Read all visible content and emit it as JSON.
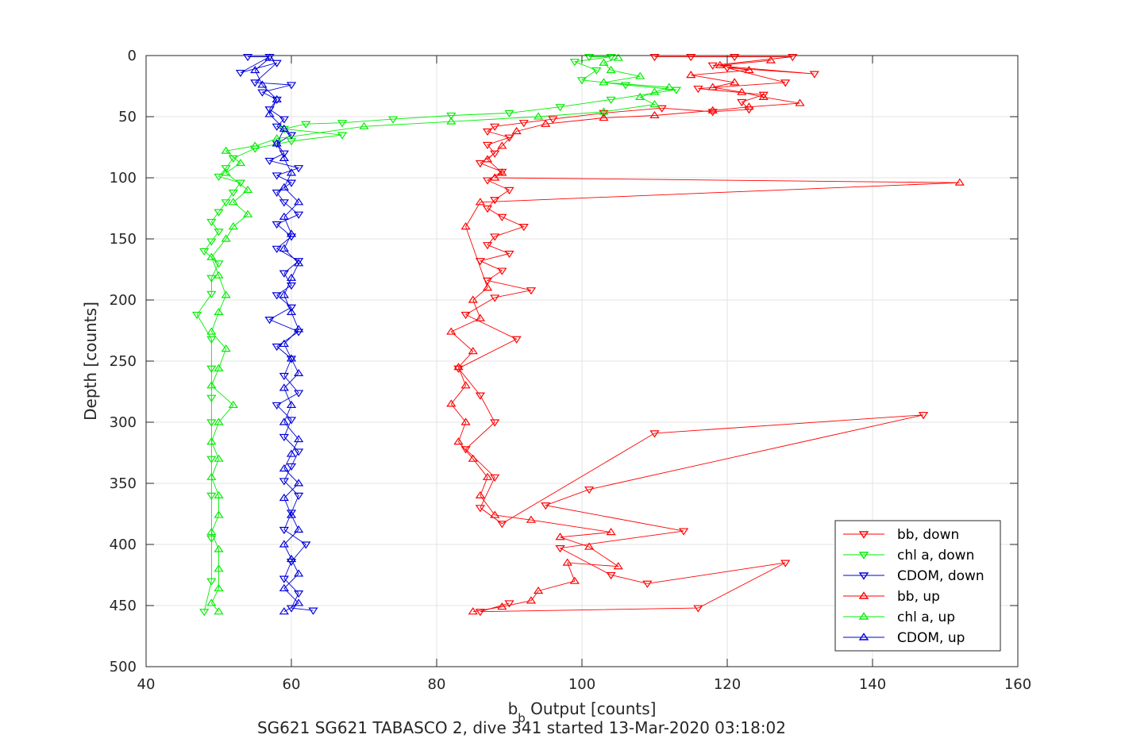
{
  "chart_data": {
    "type": "scatter",
    "xlabel_main": "b",
    "xlabel_sub": "b",
    "xlabel_rest": " Output [counts]",
    "ylabel": "Depth [counts]",
    "caption": "SG621 SG621 TABASCO 2, dive 341 started 13-Mar-2020 03:18:02",
    "xlim": [
      40,
      160
    ],
    "ylim": [
      0,
      500
    ],
    "y_reversed": true,
    "grid": true,
    "legend_position": "bottom-right",
    "x_ticks": [
      40,
      60,
      80,
      100,
      120,
      140,
      160
    ],
    "y_ticks": [
      0,
      50,
      100,
      150,
      200,
      250,
      300,
      350,
      400,
      450,
      500
    ],
    "series": [
      {
        "name": "bb, down",
        "color": "#ff0000",
        "marker": "triangle-down",
        "connected": true,
        "points": [
          [
            110,
            1
          ],
          [
            115,
            1
          ],
          [
            121,
            1
          ],
          [
            129,
            1
          ],
          [
            118,
            8
          ],
          [
            132,
            15
          ],
          [
            120,
            10
          ],
          [
            128,
            22
          ],
          [
            116,
            27
          ],
          [
            125,
            32
          ],
          [
            122,
            38
          ],
          [
            123,
            44
          ],
          [
            118,
            46
          ],
          [
            111,
            43
          ],
          [
            103,
            47
          ],
          [
            96,
            52
          ],
          [
            92,
            55
          ],
          [
            88,
            58
          ],
          [
            87,
            62
          ],
          [
            90,
            67
          ],
          [
            87,
            73
          ],
          [
            88,
            80
          ],
          [
            86,
            88
          ],
          [
            89,
            95
          ],
          [
            87,
            102
          ],
          [
            90,
            110
          ],
          [
            88,
            118
          ],
          [
            87,
            125
          ],
          [
            89,
            132
          ],
          [
            92,
            140
          ],
          [
            88,
            148
          ],
          [
            87,
            155
          ],
          [
            90,
            162
          ],
          [
            86,
            168
          ],
          [
            89,
            176
          ],
          [
            87,
            184
          ],
          [
            93,
            192
          ],
          [
            88,
            198
          ],
          [
            84,
            212
          ],
          [
            91,
            232
          ],
          [
            83,
            256
          ],
          [
            86,
            278
          ],
          [
            88,
            300
          ],
          [
            84,
            322
          ],
          [
            88,
            345
          ],
          [
            86,
            370
          ],
          [
            89,
            383
          ],
          [
            110,
            309
          ],
          [
            147,
            294
          ],
          [
            101,
            355
          ],
          [
            95,
            368
          ],
          [
            114,
            389
          ],
          [
            97,
            403
          ],
          [
            104,
            425
          ],
          [
            109,
            432
          ],
          [
            128,
            415
          ],
          [
            116,
            452
          ],
          [
            86,
            455
          ],
          [
            90,
            448
          ]
        ]
      },
      {
        "name": "chl a, down",
        "color": "#00ee00",
        "marker": "triangle-down",
        "connected": true,
        "points": [
          [
            101,
            1
          ],
          [
            104,
            1
          ],
          [
            99,
            5
          ],
          [
            102,
            12
          ],
          [
            100,
            20
          ],
          [
            106,
            24
          ],
          [
            113,
            28
          ],
          [
            104,
            36
          ],
          [
            97,
            42
          ],
          [
            90,
            47
          ],
          [
            82,
            49
          ],
          [
            74,
            52
          ],
          [
            67,
            55
          ],
          [
            62,
            56
          ],
          [
            59,
            60
          ],
          [
            67,
            65
          ],
          [
            60,
            70
          ],
          [
            55,
            76
          ],
          [
            52,
            84
          ],
          [
            51,
            92
          ],
          [
            50,
            99
          ],
          [
            53,
            104
          ],
          [
            52,
            112
          ],
          [
            51,
            120
          ],
          [
            50,
            128
          ],
          [
            49,
            136
          ],
          [
            50,
            144
          ],
          [
            49,
            152
          ],
          [
            48,
            160
          ],
          [
            50,
            170
          ],
          [
            49,
            182
          ],
          [
            49,
            195
          ],
          [
            47,
            212
          ],
          [
            49,
            232
          ],
          [
            49,
            256
          ],
          [
            49,
            280
          ],
          [
            49,
            300
          ],
          [
            49,
            330
          ],
          [
            49,
            360
          ],
          [
            49,
            395
          ],
          [
            49,
            430
          ],
          [
            48,
            455
          ]
        ]
      },
      {
        "name": "CDOM, down",
        "color": "#0000dd",
        "marker": "triangle-down",
        "connected": true,
        "points": [
          [
            54,
            1
          ],
          [
            57,
            1
          ],
          [
            53,
            14
          ],
          [
            58,
            6
          ],
          [
            55,
            22
          ],
          [
            60,
            24
          ],
          [
            56,
            30
          ],
          [
            58,
            36
          ],
          [
            57,
            44
          ],
          [
            59,
            52
          ],
          [
            58,
            58
          ],
          [
            60,
            65
          ],
          [
            58,
            72
          ],
          [
            59,
            80
          ],
          [
            57,
            86
          ],
          [
            61,
            92
          ],
          [
            58,
            98
          ],
          [
            60,
            104
          ],
          [
            58,
            112
          ],
          [
            59,
            120
          ],
          [
            61,
            130
          ],
          [
            58,
            138
          ],
          [
            60,
            148
          ],
          [
            58,
            158
          ],
          [
            61,
            168
          ],
          [
            59,
            178
          ],
          [
            60,
            188
          ],
          [
            58,
            196
          ],
          [
            60,
            206
          ],
          [
            57,
            216
          ],
          [
            61,
            226
          ],
          [
            58,
            238
          ],
          [
            60,
            248
          ],
          [
            59,
            262
          ],
          [
            61,
            276
          ],
          [
            58,
            286
          ],
          [
            60,
            298
          ],
          [
            59,
            312
          ],
          [
            61,
            324
          ],
          [
            60,
            336
          ],
          [
            59,
            348
          ],
          [
            61,
            360
          ],
          [
            60,
            374
          ],
          [
            59,
            388
          ],
          [
            62,
            400
          ],
          [
            60,
            414
          ],
          [
            59,
            428
          ],
          [
            61,
            440
          ],
          [
            60,
            452
          ],
          [
            63,
            454
          ]
        ]
      },
      {
        "name": "bb, up",
        "color": "#ff0000",
        "marker": "triangle-up",
        "connected": true,
        "points": [
          [
            85,
            455
          ],
          [
            89,
            451
          ],
          [
            93,
            446
          ],
          [
            94,
            438
          ],
          [
            99,
            430
          ],
          [
            98,
            415
          ],
          [
            105,
            418
          ],
          [
            101,
            402
          ],
          [
            97,
            394
          ],
          [
            104,
            390
          ],
          [
            93,
            380
          ],
          [
            88,
            376
          ],
          [
            86,
            360
          ],
          [
            87,
            345
          ],
          [
            85,
            330
          ],
          [
            83,
            316
          ],
          [
            84,
            300
          ],
          [
            82,
            285
          ],
          [
            84,
            270
          ],
          [
            83,
            255
          ],
          [
            85,
            242
          ],
          [
            82,
            226
          ],
          [
            86,
            215
          ],
          [
            85,
            200
          ],
          [
            87,
            190
          ],
          [
            84,
            140
          ],
          [
            86,
            120
          ],
          [
            152,
            104
          ],
          [
            88,
            100
          ],
          [
            89,
            96
          ],
          [
            87,
            85
          ],
          [
            89,
            74
          ],
          [
            91,
            62
          ],
          [
            95,
            56
          ],
          [
            103,
            51
          ],
          [
            110,
            49
          ],
          [
            118,
            45
          ],
          [
            123,
            42
          ],
          [
            130,
            39
          ],
          [
            125,
            34
          ],
          [
            122,
            30
          ],
          [
            118,
            26
          ],
          [
            121,
            22
          ],
          [
            115,
            16
          ],
          [
            123,
            12
          ],
          [
            119,
            8
          ],
          [
            126,
            4
          ]
        ]
      },
      {
        "name": "chl a, up",
        "color": "#00ee00",
        "marker": "triangle-up",
        "connected": true,
        "points": [
          [
            50,
            455
          ],
          [
            49,
            448
          ],
          [
            50,
            436
          ],
          [
            50,
            420
          ],
          [
            50,
            404
          ],
          [
            49,
            390
          ],
          [
            50,
            376
          ],
          [
            50,
            360
          ],
          [
            49,
            345
          ],
          [
            50,
            330
          ],
          [
            49,
            316
          ],
          [
            50,
            300
          ],
          [
            52,
            286
          ],
          [
            49,
            270
          ],
          [
            50,
            256
          ],
          [
            51,
            240
          ],
          [
            49,
            226
          ],
          [
            50,
            210
          ],
          [
            51,
            196
          ],
          [
            50,
            180
          ],
          [
            49,
            165
          ],
          [
            51,
            150
          ],
          [
            52,
            140
          ],
          [
            54,
            130
          ],
          [
            52,
            120
          ],
          [
            54,
            110
          ],
          [
            51,
            96
          ],
          [
            53,
            88
          ],
          [
            51,
            78
          ],
          [
            55,
            74
          ],
          [
            58,
            68
          ],
          [
            70,
            58
          ],
          [
            82,
            54
          ],
          [
            94,
            50
          ],
          [
            103,
            46
          ],
          [
            110,
            40
          ],
          [
            108,
            34
          ],
          [
            110,
            30
          ],
          [
            112,
            26
          ],
          [
            103,
            22
          ],
          [
            108,
            17
          ],
          [
            104,
            12
          ],
          [
            103,
            6
          ],
          [
            105,
            2
          ]
        ]
      },
      {
        "name": "CDOM, up",
        "color": "#0000dd",
        "marker": "triangle-up",
        "connected": true,
        "points": [
          [
            59,
            455
          ],
          [
            61,
            448
          ],
          [
            59,
            436
          ],
          [
            61,
            424
          ],
          [
            60,
            412
          ],
          [
            59,
            400
          ],
          [
            61,
            388
          ],
          [
            60,
            376
          ],
          [
            59,
            362
          ],
          [
            61,
            350
          ],
          [
            59,
            338
          ],
          [
            60,
            326
          ],
          [
            61,
            314
          ],
          [
            59,
            300
          ],
          [
            60,
            286
          ],
          [
            59,
            272
          ],
          [
            61,
            260
          ],
          [
            60,
            248
          ],
          [
            59,
            236
          ],
          [
            61,
            224
          ],
          [
            60,
            210
          ],
          [
            59,
            196
          ],
          [
            60,
            182
          ],
          [
            61,
            170
          ],
          [
            59,
            158
          ],
          [
            60,
            146
          ],
          [
            59,
            132
          ],
          [
            61,
            120
          ],
          [
            59,
            108
          ],
          [
            60,
            96
          ],
          [
            59,
            84
          ],
          [
            58,
            72
          ],
          [
            59,
            60
          ],
          [
            57,
            48
          ],
          [
            58,
            36
          ],
          [
            56,
            24
          ],
          [
            55,
            12
          ],
          [
            57,
            2
          ]
        ]
      }
    ]
  }
}
